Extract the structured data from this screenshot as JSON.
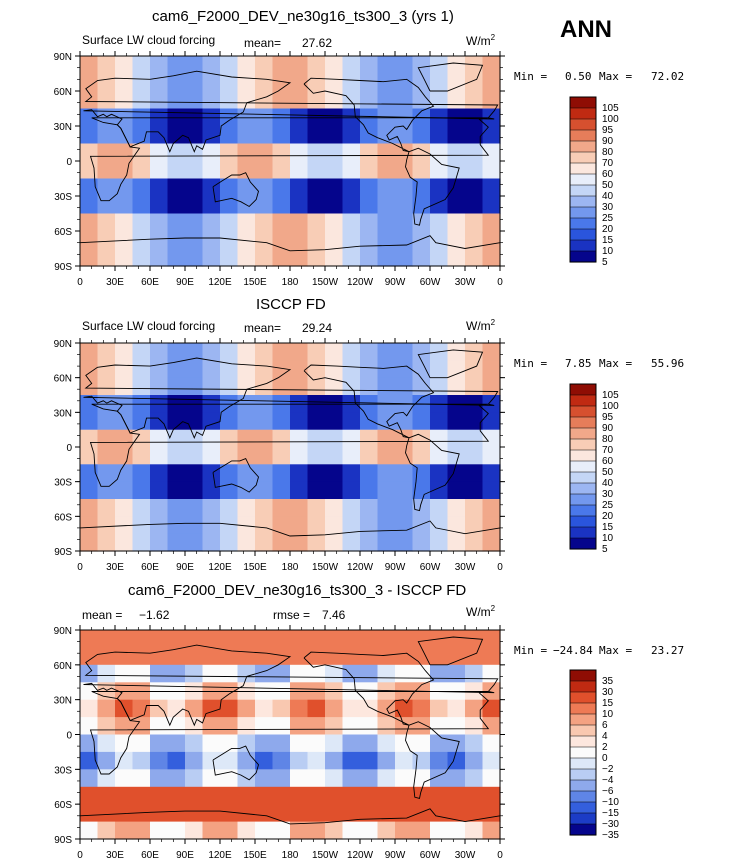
{
  "season": "ANN",
  "lat_ticks": [
    "90N",
    "60N",
    "30N",
    "0",
    "30S",
    "60S",
    "90S"
  ],
  "lon_ticks": [
    "0",
    "30E",
    "60E",
    "90E",
    "120E",
    "150E",
    "180",
    "150W",
    "120W",
    "90W",
    "60W",
    "30W",
    "0"
  ],
  "panels": [
    {
      "title": "cam6_F2000_DEV_ne30g16_ts300_3 (yrs 1)",
      "variable": "Surface LW cloud forcing",
      "mean_label": "mean=",
      "mean": "27.62",
      "units": "W/m",
      "units_sup": "2",
      "min_label": "Min =",
      "min": "0.50",
      "max_label": "Max =",
      "max": "72.02",
      "colorbar": [
        "105",
        "100",
        "95",
        "90",
        "80",
        "70",
        "60",
        "50",
        "40",
        "30",
        "25",
        "20",
        "15",
        "10",
        "5"
      ]
    },
    {
      "title": "ISCCP FD",
      "variable": "Surface LW cloud forcing",
      "mean_label": "mean=",
      "mean": "29.24",
      "units": "W/m",
      "units_sup": "2",
      "min_label": "Min =",
      "min": "7.85",
      "max_label": "Max =",
      "max": "55.96",
      "colorbar": [
        "105",
        "100",
        "95",
        "90",
        "80",
        "70",
        "60",
        "50",
        "40",
        "30",
        "25",
        "20",
        "15",
        "10",
        "5"
      ]
    },
    {
      "title": "cam6_F2000_DEV_ne30g16_ts300_3 - ISCCP FD",
      "mean_label": "mean =",
      "mean": "−1.62",
      "rmse_label": "rmse =",
      "rmse": "7.46",
      "units": "W/m",
      "units_sup": "2",
      "min_label": "Min =",
      "min": "−24.84",
      "max_label": "Max =",
      "max": "23.27",
      "colorbar": [
        "35",
        "30",
        "15",
        "10",
        "6",
        "4",
        "2",
        "0",
        "−2",
        "−4",
        "−6",
        "−10",
        "−15",
        "−30",
        "−35"
      ]
    }
  ],
  "colors": {
    "abs_scale": [
      "#05058c",
      "#1a33c2",
      "#2a55dd",
      "#4a78ea",
      "#7398ee",
      "#9cb6f2",
      "#c4d6f6",
      "#e8eefa",
      "#fbe7de",
      "#f8cdb6",
      "#f1a88a",
      "#e67d5a",
      "#d6502f",
      "#c02a12",
      "#8f0d04"
    ],
    "diff_scale": [
      "#8f0d04",
      "#c02a12",
      "#e0502c",
      "#ee7a55",
      "#f4a282",
      "#f9c8b0",
      "#fde7de",
      "#fbfbfb",
      "#dde8f8",
      "#b9cdf3",
      "#8ea9ec",
      "#5f85e6",
      "#345fdd",
      "#1c3cc6",
      "#05058c"
    ]
  }
}
